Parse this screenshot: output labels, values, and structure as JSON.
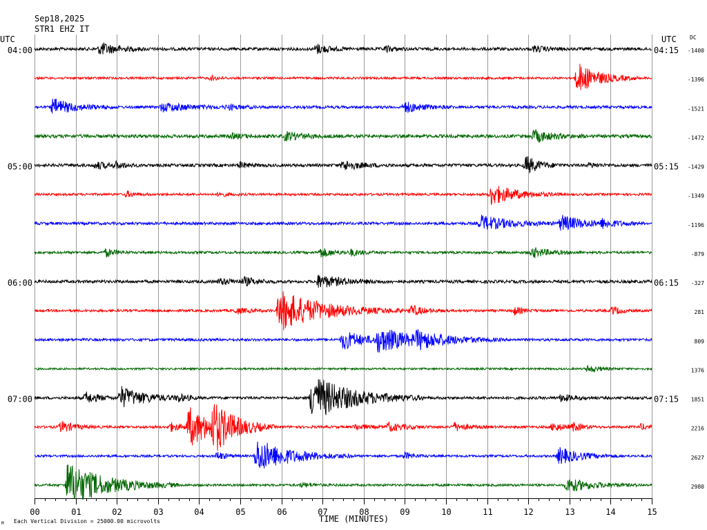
{
  "header": {
    "date": "Sep18,2025",
    "station": "STR1 EHZ IT"
  },
  "labels": {
    "left_tz": "UTC",
    "right_tz": "UTC",
    "dc": "DC",
    "x_axis": "TIME (MINUTES)",
    "scale_note": "Each Vertical Division = 25000.00 microvolts",
    "corner_mark": "M"
  },
  "colors": {
    "black": "#000000",
    "red": "#ff0000",
    "blue": "#0000ff",
    "green": "#006600",
    "grid": "#9a9a9a"
  },
  "chart_data": {
    "type": "line",
    "title": "Sep18,2025 STR1 EHZ IT",
    "xlabel": "TIME (MINUTES)",
    "xlim": [
      0,
      15
    ],
    "x_ticks": [
      "00",
      "01",
      "02",
      "03",
      "04",
      "05",
      "06",
      "07",
      "08",
      "09",
      "10",
      "11",
      "12",
      "13",
      "14",
      "15"
    ],
    "grid": true,
    "traces": [
      {
        "color": "black",
        "left_label": "04:00",
        "right_label": "04:15",
        "dc": "-1400",
        "noise": 2.2,
        "events": [
          {
            "t": 1.6,
            "a": 9,
            "d": 0.4
          },
          {
            "t": 6.85,
            "a": 7,
            "d": 0.3
          },
          {
            "t": 12.15,
            "a": 4,
            "d": 0.3
          },
          {
            "t": 8.55,
            "a": 4,
            "d": 0.2
          }
        ]
      },
      {
        "color": "red",
        "left_label": "",
        "right_label": "",
        "dc": "-1396",
        "noise": 1.6,
        "events": [
          {
            "t": 13.2,
            "a": 22,
            "d": 0.5
          },
          {
            "t": 4.3,
            "a": 3,
            "d": 0.2
          }
        ]
      },
      {
        "color": "blue",
        "left_label": "",
        "right_label": "",
        "dc": "-1521",
        "noise": 2.0,
        "events": [
          {
            "t": 0.45,
            "a": 12,
            "d": 0.5
          },
          {
            "t": 3.1,
            "a": 6,
            "d": 0.7
          },
          {
            "t": 9.0,
            "a": 8,
            "d": 0.4
          },
          {
            "t": 4.7,
            "a": 3,
            "d": 0.3
          }
        ]
      },
      {
        "color": "green",
        "left_label": "",
        "right_label": "",
        "dc": "-1472",
        "noise": 2.4,
        "events": [
          {
            "t": 12.15,
            "a": 9,
            "d": 0.4
          },
          {
            "t": 6.1,
            "a": 6,
            "d": 0.4
          },
          {
            "t": 4.8,
            "a": 3,
            "d": 0.3
          }
        ]
      },
      {
        "color": "black",
        "left_label": "05:00",
        "right_label": "05:15",
        "dc": "-1429",
        "noise": 2.2,
        "events": [
          {
            "t": 11.95,
            "a": 13,
            "d": 0.3
          },
          {
            "t": 7.5,
            "a": 7,
            "d": 0.4
          },
          {
            "t": 1.5,
            "a": 5,
            "d": 0.3
          },
          {
            "t": 2.0,
            "a": 4,
            "d": 0.2
          },
          {
            "t": 5.0,
            "a": 4,
            "d": 0.2
          },
          {
            "t": 13.5,
            "a": 3,
            "d": 0.2
          }
        ]
      },
      {
        "color": "red",
        "left_label": "",
        "right_label": "",
        "dc": "-1349",
        "noise": 1.7,
        "events": [
          {
            "t": 11.1,
            "a": 15,
            "d": 0.6
          },
          {
            "t": 2.25,
            "a": 4,
            "d": 0.2
          },
          {
            "t": 4.5,
            "a": 3,
            "d": 0.2
          }
        ]
      },
      {
        "color": "blue",
        "left_label": "",
        "right_label": "",
        "dc": "-1196",
        "noise": 2.0,
        "events": [
          {
            "t": 10.85,
            "a": 11,
            "d": 0.7
          },
          {
            "t": 12.8,
            "a": 11,
            "d": 0.6
          },
          {
            "t": 13.8,
            "a": 5,
            "d": 0.3
          }
        ]
      },
      {
        "color": "green",
        "left_label": "",
        "right_label": "",
        "dc": "-879",
        "noise": 1.8,
        "events": [
          {
            "t": 1.75,
            "a": 6,
            "d": 0.2
          },
          {
            "t": 6.95,
            "a": 7,
            "d": 0.3
          },
          {
            "t": 7.7,
            "a": 4,
            "d": 0.3
          },
          {
            "t": 12.1,
            "a": 7,
            "d": 0.4
          }
        ]
      },
      {
        "color": "black",
        "left_label": "06:00",
        "right_label": "06:15",
        "dc": "-327",
        "noise": 2.2,
        "events": [
          {
            "t": 6.9,
            "a": 9,
            "d": 0.6
          },
          {
            "t": 4.5,
            "a": 4,
            "d": 0.4
          },
          {
            "t": 5.1,
            "a": 5,
            "d": 0.3
          }
        ]
      },
      {
        "color": "red",
        "left_label": "",
        "right_label": "",
        "dc": "281",
        "noise": 1.8,
        "events": [
          {
            "t": 5.95,
            "a": 30,
            "d": 1.0
          },
          {
            "t": 9.15,
            "a": 8,
            "d": 0.3
          },
          {
            "t": 11.65,
            "a": 6,
            "d": 0.2
          },
          {
            "t": 14.05,
            "a": 6,
            "d": 0.2
          },
          {
            "t": 4.9,
            "a": 4,
            "d": 0.3
          }
        ]
      },
      {
        "color": "blue",
        "left_label": "",
        "right_label": "",
        "dc": "809",
        "noise": 1.9,
        "events": [
          {
            "t": 7.5,
            "a": 14,
            "d": 0.5
          },
          {
            "t": 8.35,
            "a": 16,
            "d": 1.0
          },
          {
            "t": 9.3,
            "a": 9,
            "d": 0.6
          }
        ]
      },
      {
        "color": "green",
        "left_label": "",
        "right_label": "",
        "dc": "1376",
        "noise": 1.4,
        "events": [
          {
            "t": 13.45,
            "a": 5,
            "d": 0.3
          }
        ]
      },
      {
        "color": "black",
        "left_label": "07:00",
        "right_label": "07:15",
        "dc": "1851",
        "noise": 2.0,
        "events": [
          {
            "t": 6.75,
            "a": 34,
            "d": 0.9
          },
          {
            "t": 2.1,
            "a": 15,
            "d": 0.6
          },
          {
            "t": 1.25,
            "a": 8,
            "d": 0.3
          },
          {
            "t": 12.8,
            "a": 5,
            "d": 0.3
          },
          {
            "t": 3.5,
            "a": 4,
            "d": 0.2
          }
        ]
      },
      {
        "color": "red",
        "left_label": "",
        "right_label": "",
        "dc": "2216",
        "noise": 1.8,
        "events": [
          {
            "t": 3.75,
            "a": 28,
            "d": 0.6
          },
          {
            "t": 4.35,
            "a": 30,
            "d": 0.5
          },
          {
            "t": 0.65,
            "a": 8,
            "d": 0.3
          },
          {
            "t": 3.3,
            "a": 6,
            "d": 0.3
          },
          {
            "t": 8.6,
            "a": 6,
            "d": 0.4
          },
          {
            "t": 10.2,
            "a": 6,
            "d": 0.3
          },
          {
            "t": 12.6,
            "a": 6,
            "d": 0.3
          },
          {
            "t": 13.1,
            "a": 5,
            "d": 0.2
          },
          {
            "t": 14.75,
            "a": 4,
            "d": 0.2
          },
          {
            "t": 7.8,
            "a": 4,
            "d": 0.3
          }
        ]
      },
      {
        "color": "blue",
        "left_label": "",
        "right_label": "",
        "dc": "2627",
        "noise": 1.7,
        "events": [
          {
            "t": 5.4,
            "a": 24,
            "d": 0.8
          },
          {
            "t": 12.75,
            "a": 12,
            "d": 0.5
          },
          {
            "t": 4.45,
            "a": 6,
            "d": 0.2
          },
          {
            "t": 9.0,
            "a": 5,
            "d": 0.2
          }
        ]
      },
      {
        "color": "green",
        "left_label": "",
        "right_label": "",
        "dc": "2980",
        "noise": 1.7,
        "events": [
          {
            "t": 0.8,
            "a": 32,
            "d": 0.9
          },
          {
            "t": 12.95,
            "a": 10,
            "d": 0.6
          },
          {
            "t": 6.5,
            "a": 3,
            "d": 0.3
          }
        ]
      }
    ]
  }
}
